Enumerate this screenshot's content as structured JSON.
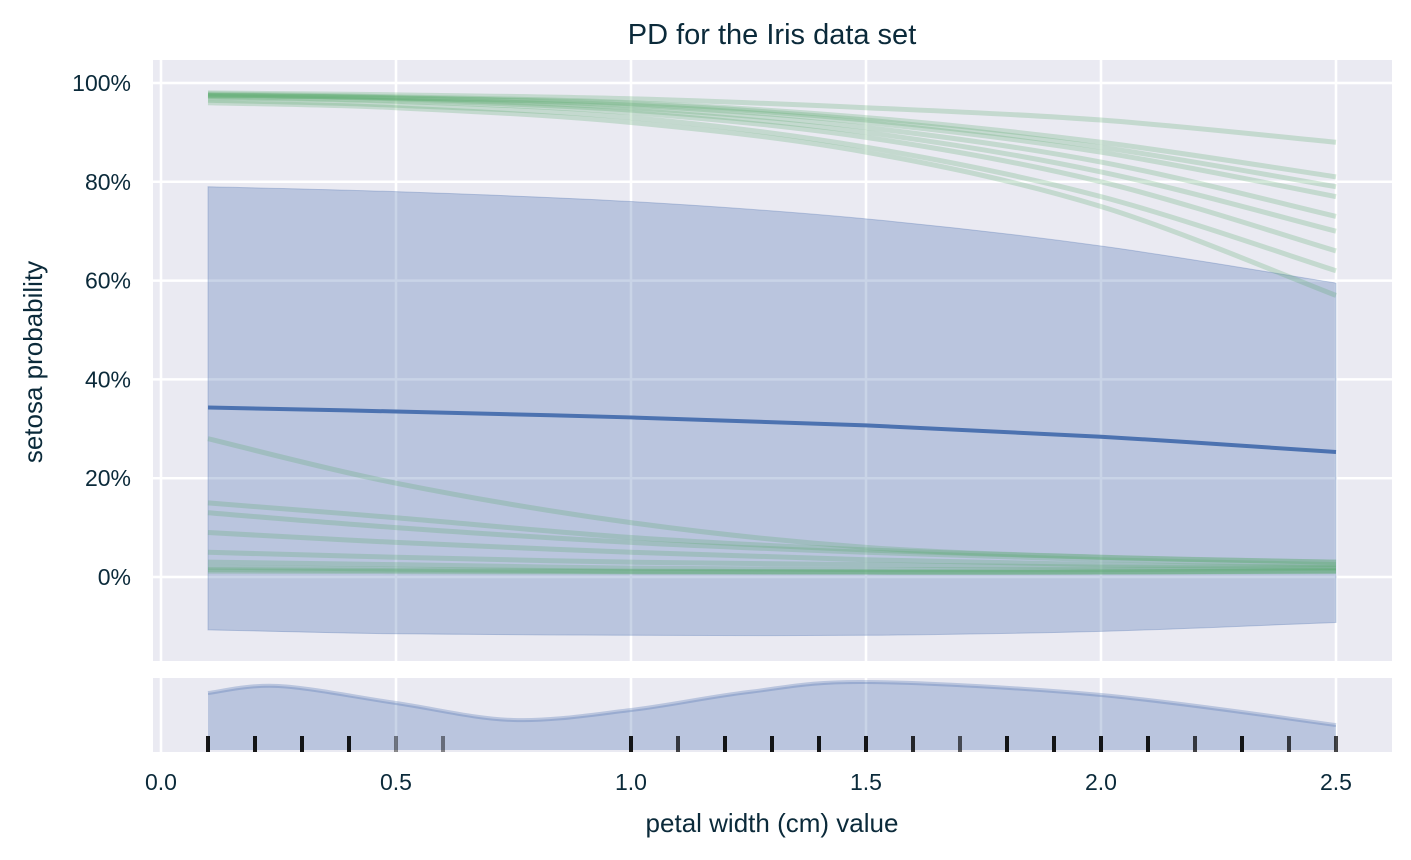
{
  "chart_data": {
    "type": "line",
    "title": "PD for the Iris data set",
    "xlabel": "petal width (cm) value",
    "ylabel": "setosa probability",
    "xlim": [
      -0.02,
      2.63
    ],
    "ylim": [
      -17,
      105
    ],
    "grid": true,
    "x_ticks": [
      "0.0",
      "0.5",
      "1.0",
      "1.5",
      "2.0",
      "2.5"
    ],
    "x_tick_values": [
      0,
      0.5,
      1.0,
      1.5,
      2.0,
      2.5
    ],
    "y_ticks": [
      "0%",
      "20%",
      "40%",
      "60%",
      "80%",
      "100%"
    ],
    "y_tick_values": [
      0,
      20,
      40,
      60,
      80,
      100
    ],
    "x": [
      0.1,
      0.5,
      1.0,
      1.5,
      2.0,
      2.5
    ],
    "pd_mean": [
      34.3,
      33.5,
      32.3,
      30.7,
      28.4,
      25.3
    ],
    "band_upper": [
      79,
      78,
      76,
      72.5,
      67,
      59.5
    ],
    "band_lower": [
      -10.7,
      -11.5,
      -11.8,
      -11.8,
      -11,
      -9.2
    ],
    "ice_curves": [
      [
        97.5,
        97,
        95.5,
        92,
        86,
        77
      ],
      [
        97.5,
        96.8,
        95,
        91,
        84,
        73
      ],
      [
        97.3,
        96.5,
        94.5,
        90,
        82,
        70
      ],
      [
        97.8,
        97.2,
        96,
        93,
        88,
        81
      ],
      [
        97,
        96.3,
        94,
        89,
        80,
        66
      ],
      [
        96.5,
        95.5,
        93,
        87,
        77,
        62
      ],
      [
        96,
        95,
        92,
        86,
        75,
        57
      ],
      [
        98,
        97.6,
        96.8,
        95,
        92.5,
        88
      ],
      [
        97.6,
        97,
        95.8,
        92.5,
        87,
        79
      ],
      [
        28,
        19,
        11,
        6,
        4,
        3
      ],
      [
        15,
        12,
        8,
        5.5,
        4,
        3
      ],
      [
        13,
        10,
        7,
        5,
        3.5,
        2.5
      ],
      [
        9,
        7,
        5,
        3.5,
        2.5,
        2
      ],
      [
        5,
        4,
        3,
        2.5,
        2,
        2
      ],
      [
        2,
        1.6,
        1.2,
        1,
        1,
        1.3
      ],
      [
        1.5,
        1.3,
        1.1,
        1,
        1,
        1.2
      ],
      [
        1.2,
        1.1,
        1,
        1,
        1,
        1.1
      ],
      [
        3,
        2.5,
        1.8,
        1.5,
        1.5,
        1.8
      ]
    ],
    "density": {
      "x": [
        0.1,
        0.25,
        0.5,
        0.75,
        1.0,
        1.25,
        1.5,
        2.0,
        2.5
      ],
      "y": [
        57,
        64,
        47,
        30,
        40,
        58,
        68,
        55,
        25
      ]
    },
    "rug": {
      "x": [
        0.1,
        0.2,
        0.3,
        0.4,
        0.5,
        0.6,
        1.0,
        1.1,
        1.2,
        1.3,
        1.4,
        1.5,
        1.6,
        1.7,
        1.8,
        1.9,
        2.0,
        2.1,
        2.2,
        2.3,
        2.4,
        2.5
      ],
      "opacity": [
        1,
        1,
        1,
        1,
        0.5,
        0.5,
        1,
        0.8,
        1,
        1,
        1,
        1,
        0.9,
        0.7,
        1,
        1,
        1,
        1,
        0.8,
        1,
        0.8,
        0.8
      ]
    },
    "colors": {
      "pd_line": "#4c72b0",
      "band": "#4c72b0",
      "ice": "#55a868",
      "background": "#eaeaf2",
      "text": "#0b2a3a"
    }
  }
}
